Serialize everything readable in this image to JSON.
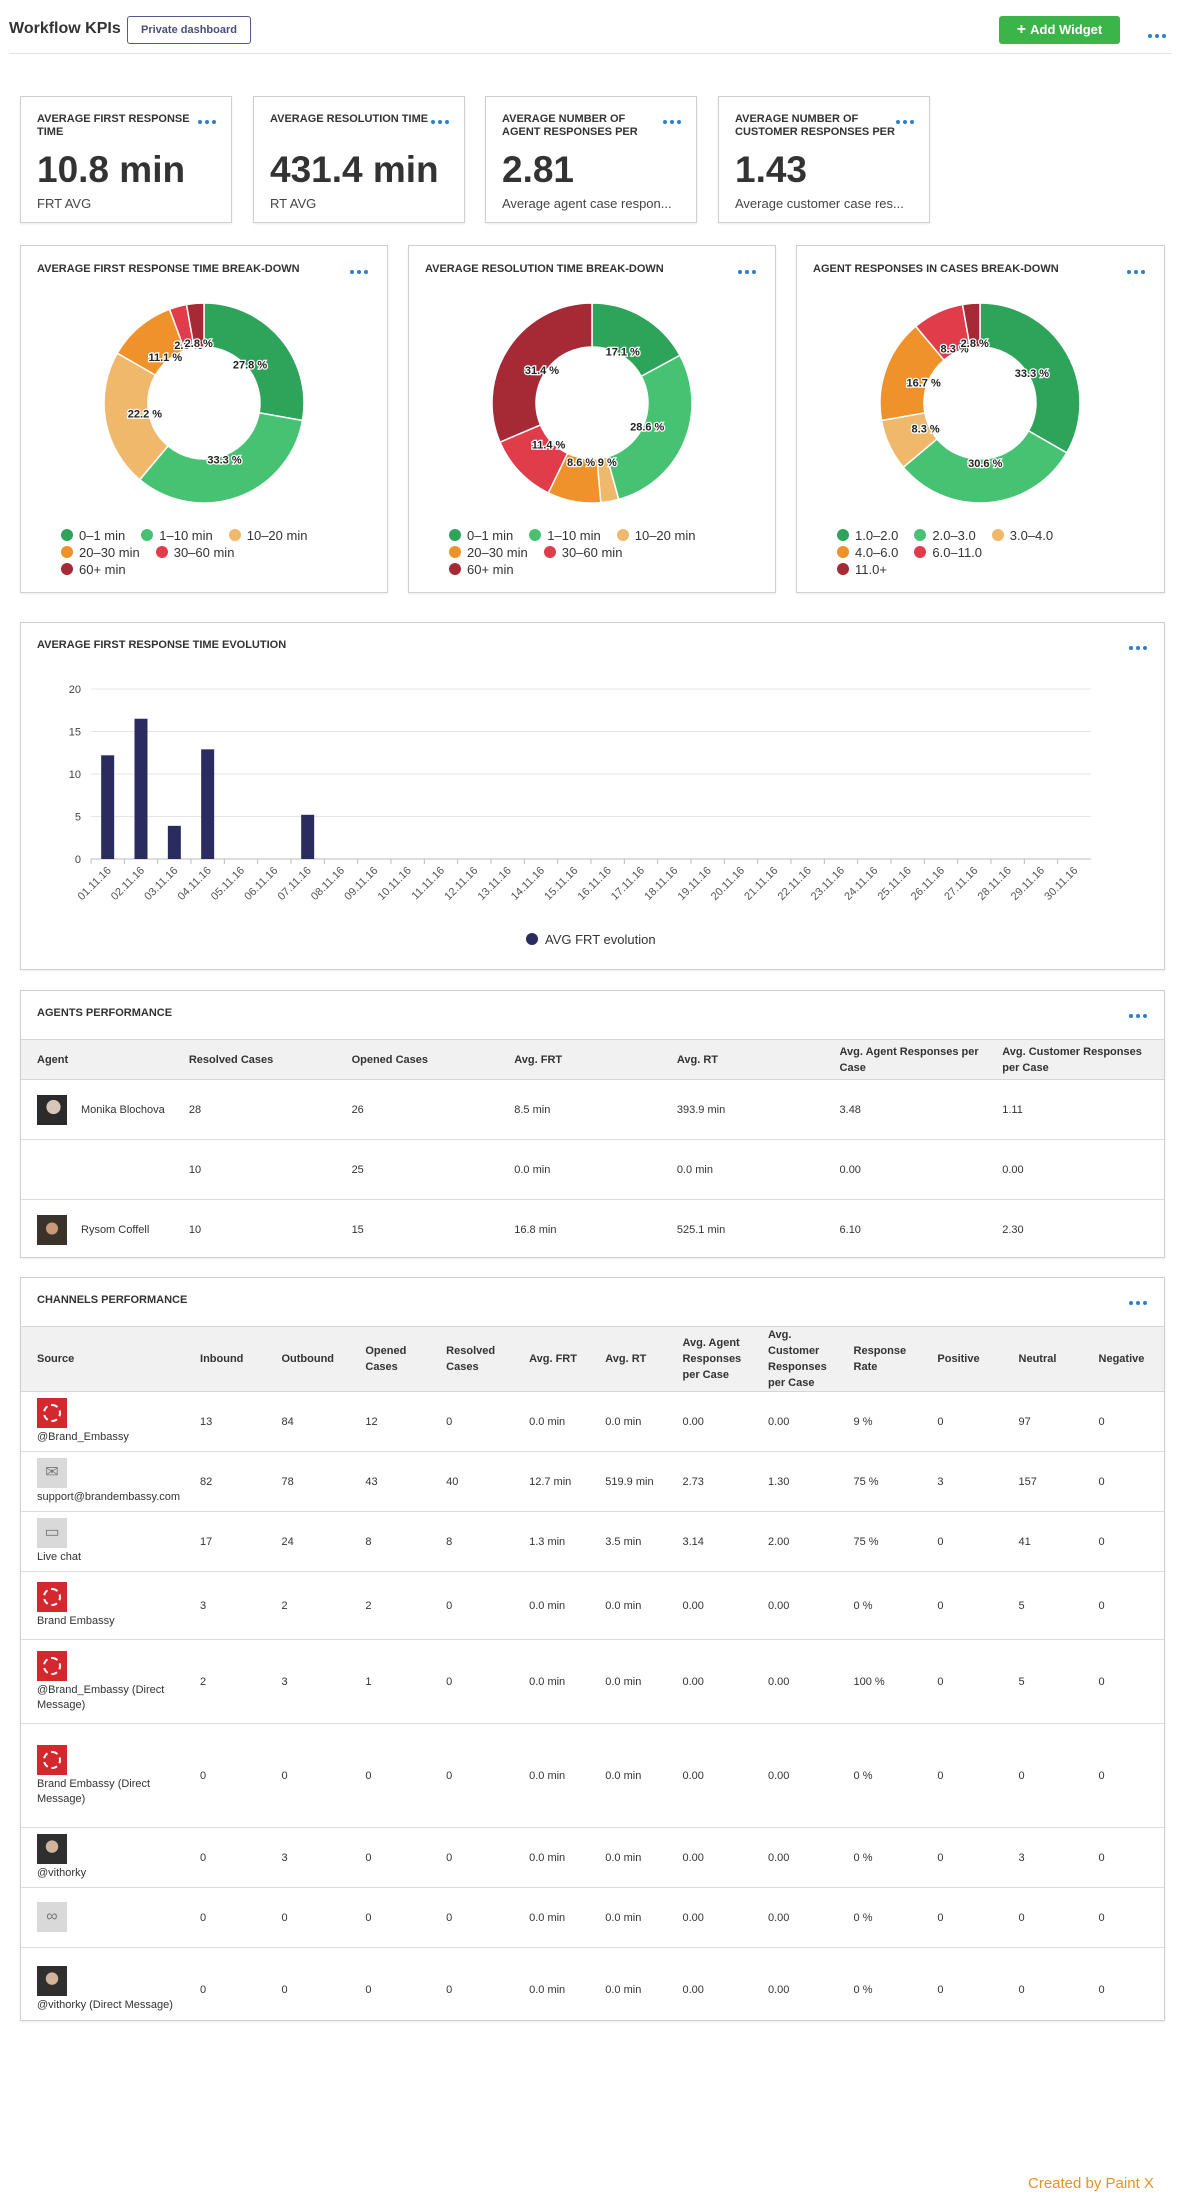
{
  "header": {
    "title": "Workflow KPIs",
    "badge": "Private dashboard",
    "add_widget": "Add Widget",
    "plus_icon": "plus-icon",
    "menu_icon": "more-dots-icon"
  },
  "kpis": [
    {
      "title": "AVERAGE FIRST RESPONSE TIME",
      "value": "10.8 min",
      "sub": "FRT AVG"
    },
    {
      "title": "AVERAGE RESOLUTION TIME",
      "value": "431.4 min",
      "sub": "RT AVG"
    },
    {
      "title": "AVERAGE NUMBER OF AGENT RESPONSES PER",
      "value": "2.81",
      "sub": "Average agent case respon..."
    },
    {
      "title": "AVERAGE NUMBER OF CUSTOMER RESPONSES PER",
      "value": "1.43",
      "sub": "Average customer case res..."
    }
  ],
  "colors": {
    "c1": "#2ea35a",
    "c2": "#47c273",
    "c3": "#f0b86a",
    "c4": "#f0922a",
    "c5": "#e03c4a",
    "c6": "#a52a35",
    "bar": "#2a2b5e",
    "accent_green": "#3bb54a",
    "dots_blue": "#2a7fd2"
  },
  "chart_data": [
    {
      "type": "pie",
      "title": "AVERAGE FIRST RESPONSE TIME BREAK-DOWN",
      "donut": true,
      "categories": [
        "0–1 min",
        "1–10 min",
        "10–20 min",
        "20–30 min",
        "30–60 min",
        "60+ min"
      ],
      "values": [
        27.8,
        33.3,
        22.2,
        11.1,
        2.8,
        2.8
      ],
      "labels": [
        "27.8 %",
        "33.3 %",
        "22.2 %",
        "11.1 %",
        "2.8 %",
        "2.8 %"
      ]
    },
    {
      "type": "pie",
      "title": "AVERAGE RESOLUTION TIME BREAK-DOWN",
      "donut": true,
      "categories": [
        "0–1 min",
        "1–10 min",
        "10–20 min",
        "20–30 min",
        "30–60 min",
        "60+ min"
      ],
      "values": [
        17.1,
        28.6,
        2.9,
        8.6,
        11.4,
        31.4
      ],
      "labels": [
        "17.1 %",
        "28.6 %",
        "2.9 %",
        "8.6 %",
        "11.4 %",
        "31.4 %"
      ]
    },
    {
      "type": "pie",
      "title": "AGENT RESPONSES IN CASES BREAK-DOWN",
      "donut": true,
      "categories": [
        "1.0–2.0",
        "2.0–3.0",
        "3.0–4.0",
        "4.0–6.0",
        "6.0–11.0",
        "11.0+"
      ],
      "values": [
        33.3,
        30.6,
        8.3,
        16.7,
        8.3,
        2.8
      ],
      "labels": [
        "33.3 %",
        "30.6 %",
        "8.3 %",
        "16.7 %",
        "8.3 %",
        "2.8 %"
      ]
    },
    {
      "type": "bar",
      "title": "AVERAGE FIRST RESPONSE TIME EVOLUTION",
      "categories": [
        "01.11.16",
        "02.11.16",
        "03.11.16",
        "04.11.16",
        "05.11.16",
        "06.11.16",
        "07.11.16",
        "08.11.16",
        "09.11.16",
        "10.11.16",
        "11.11.16",
        "12.11.16",
        "13.11.16",
        "14.11.16",
        "15.11.16",
        "16.11.16",
        "17.11.16",
        "18.11.16",
        "19.11.16",
        "20.11.16",
        "21.11.16",
        "22.11.16",
        "23.11.16",
        "24.11.16",
        "25.11.16",
        "26.11.16",
        "27.11.16",
        "28.11.16",
        "29.11.16",
        "30.11.16"
      ],
      "series": [
        {
          "name": "AVG FRT evolution",
          "values": [
            12.2,
            16.5,
            3.9,
            12.9,
            0,
            0,
            5.2,
            0,
            0,
            0,
            0,
            0,
            0,
            0,
            0,
            0,
            0,
            0,
            0,
            0,
            0,
            0,
            0,
            0,
            0,
            0,
            0,
            0,
            0,
            0
          ]
        }
      ],
      "ylim": [
        0,
        20
      ],
      "yticks": [
        "0",
        "5",
        "10",
        "15",
        "20"
      ],
      "grid": true,
      "legend": "bottom-center"
    }
  ],
  "agents": {
    "title": "AGENTS PERFORMANCE",
    "columns": [
      "Agent",
      "Resolved Cases",
      "Opened Cases",
      "Avg. FRT",
      "Avg. RT",
      "Avg. Agent Responses per Case",
      "Avg. Customer Responses per Case"
    ],
    "rows": [
      {
        "avatar": "agent-avatar-icon",
        "name": "Monika Blochova",
        "cells": [
          "28",
          "26",
          "8.5 min",
          "393.9 min",
          "3.48",
          "1.11"
        ]
      },
      {
        "avatar": "",
        "name": "",
        "cells": [
          "10",
          "25",
          "0.0 min",
          "0.0 min",
          "0.00",
          "0.00"
        ]
      },
      {
        "avatar": "agent-avatar-icon",
        "name": "Rysom Coffell",
        "cells": [
          "10",
          "15",
          "16.8 min",
          "525.1 min",
          "6.10",
          "2.30"
        ]
      }
    ]
  },
  "channels": {
    "title": "CHANNELS PERFORMANCE",
    "columns": [
      "Source",
      "Inbound",
      "Outbound",
      "Opened Cases",
      "Resolved Cases",
      "Avg. FRT",
      "Avg. RT",
      "Avg. Agent Responses per Case",
      "Avg. Customer Responses per Case",
      "Response Rate",
      "Positive",
      "Neutral",
      "Negative"
    ],
    "rows": [
      {
        "icon": "brand-logo-icon",
        "source": "@Brand_Embassy",
        "cells": [
          "13",
          "84",
          "12",
          "0",
          "0.0 min",
          "0.0 min",
          "0.00",
          "0.00",
          "9 %",
          "0",
          "97",
          "0"
        ]
      },
      {
        "icon": "email-icon",
        "source": "support@brandembassy.com",
        "cells": [
          "82",
          "78",
          "43",
          "40",
          "12.7 min",
          "519.9 min",
          "2.73",
          "1.30",
          "75 %",
          "3",
          "157",
          "0"
        ]
      },
      {
        "icon": "live-chat-icon",
        "source": "Live chat",
        "cells": [
          "17",
          "24",
          "8",
          "8",
          "1.3 min",
          "3.5 min",
          "3.14",
          "2.00",
          "75 %",
          "0",
          "41",
          "0"
        ]
      },
      {
        "icon": "brand-logo-icon",
        "source": "Brand Embassy",
        "cells": [
          "3",
          "2",
          "2",
          "0",
          "0.0 min",
          "0.0 min",
          "0.00",
          "0.00",
          "0 %",
          "0",
          "5",
          "0"
        ]
      },
      {
        "icon": "brand-logo-icon",
        "source": "@Brand_Embassy (Direct Message)",
        "cells": [
          "2",
          "3",
          "1",
          "0",
          "0.0 min",
          "0.0 min",
          "0.00",
          "0.00",
          "100 %",
          "0",
          "5",
          "0"
        ]
      },
      {
        "icon": "brand-logo-icon",
        "source": "Brand Embassy (Direct Message)",
        "cells": [
          "0",
          "0",
          "0",
          "0",
          "0.0 min",
          "0.0 min",
          "0.00",
          "0.00",
          "0 %",
          "0",
          "0",
          "0"
        ]
      },
      {
        "icon": "user-avatar-icon",
        "source": "@vithorky",
        "cells": [
          "0",
          "3",
          "0",
          "0",
          "0.0 min",
          "0.0 min",
          "0.00",
          "0.00",
          "0 %",
          "0",
          "3",
          "0"
        ]
      },
      {
        "icon": "link-icon",
        "source": "",
        "cells": [
          "0",
          "0",
          "0",
          "0",
          "0.0 min",
          "0.0 min",
          "0.00",
          "0.00",
          "0 %",
          "0",
          "0",
          "0"
        ]
      },
      {
        "icon": "user-avatar-icon",
        "source": "@vithorky (Direct Message)",
        "cells": [
          "0",
          "0",
          "0",
          "0",
          "0.0 min",
          "0.0 min",
          "0.00",
          "0.00",
          "0 %",
          "0",
          "0",
          "0"
        ]
      }
    ]
  },
  "footer": {
    "credit": "Created by Paint X"
  }
}
